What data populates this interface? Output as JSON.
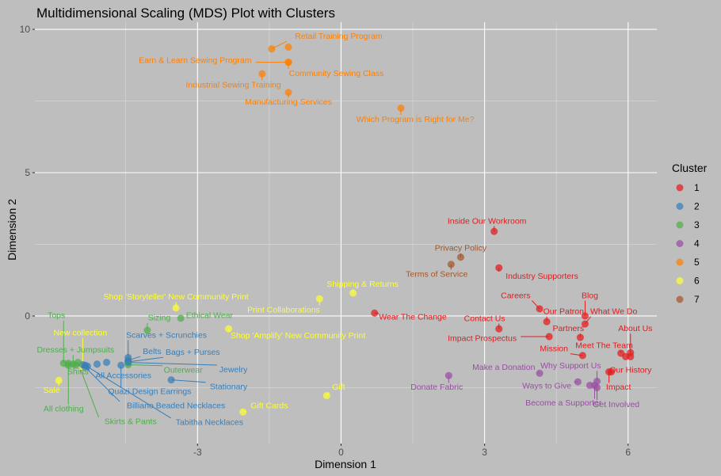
{
  "chart_data": {
    "type": "scatter",
    "title": "Multidimensional Scaling (MDS) Plot with Clusters",
    "xlabel": "Dimension 1",
    "ylabel": "Dimension 2",
    "xlim": [
      -6.4,
      6.6
    ],
    "ylim": [
      -4.45,
      10.25
    ],
    "x_ticks": [
      -3,
      0,
      3,
      6
    ],
    "y_ticks": [
      0,
      5,
      10
    ],
    "grid": true,
    "legend": {
      "title": "Cluster",
      "position": "right"
    },
    "clusters": [
      {
        "name": "1",
        "color": "#E41A1C"
      },
      {
        "name": "2",
        "color": "#377EB8"
      },
      {
        "name": "3",
        "color": "#4DAF4A"
      },
      {
        "name": "4",
        "color": "#984EA3"
      },
      {
        "name": "5",
        "color": "#FF7F00"
      },
      {
        "name": "6",
        "color": "#FFFF33"
      },
      {
        "name": "7",
        "color": "#A65628"
      }
    ],
    "points": [
      {
        "label": "Retail Training Program",
        "x": -1.45,
        "y": 9.32,
        "cluster": "5",
        "lx": -0.05,
        "ly": 9.75
      },
      {
        "label": "",
        "x": -1.1,
        "y": 9.38,
        "cluster": "5"
      },
      {
        "label": "Earn & Learn Sewing Program",
        "x": -1.1,
        "y": 8.85,
        "cluster": "5",
        "lx": -3.05,
        "ly": 8.9
      },
      {
        "label": "Community Sewing Class",
        "x": -1.1,
        "y": 8.85,
        "cluster": "5",
        "lx": -0.1,
        "ly": 8.45
      },
      {
        "label": "Industrial Sewing Training",
        "x": -1.65,
        "y": 8.45,
        "cluster": "5",
        "lx": -2.25,
        "ly": 8.05
      },
      {
        "label": "Manufacturing Services",
        "x": -1.1,
        "y": 7.8,
        "cluster": "5",
        "lx": -1.1,
        "ly": 7.45
      },
      {
        "label": "Which Program is Right for Me?",
        "x": 1.25,
        "y": 7.25,
        "cluster": "5",
        "lx": 1.55,
        "ly": 6.85
      },
      {
        "label": "Inside Our Workroom",
        "x": 3.2,
        "y": 2.95,
        "cluster": "1",
        "lx": 3.05,
        "ly": 3.3
      },
      {
        "label": "Privacy Policy",
        "x": 2.5,
        "y": 2.05,
        "cluster": "7",
        "lx": 2.5,
        "ly": 2.35
      },
      {
        "label": "Terms of Service",
        "x": 2.3,
        "y": 1.8,
        "cluster": "7",
        "lx": 2.0,
        "ly": 1.45
      },
      {
        "label": "Industry Supporters",
        "x": 3.3,
        "y": 1.68,
        "cluster": "1",
        "lx": 4.2,
        "ly": 1.38
      },
      {
        "label": "Shipping & Returns",
        "x": 0.25,
        "y": 0.8,
        "cluster": "6",
        "lx": 0.45,
        "ly": 1.1
      },
      {
        "label": "Print Collaborations",
        "x": -0.45,
        "y": 0.6,
        "cluster": "6",
        "lx": -1.2,
        "ly": 0.2
      },
      {
        "label": "Careers",
        "x": 4.15,
        "y": 0.25,
        "cluster": "1",
        "lx": 3.65,
        "ly": 0.7
      },
      {
        "label": "Blog",
        "x": 5.1,
        "y": 0.0,
        "cluster": "1",
        "lx": 5.2,
        "ly": 0.7
      },
      {
        "label": "Our Patron",
        "x": 4.3,
        "y": -0.2,
        "cluster": "1",
        "lx": 4.65,
        "ly": 0.15
      },
      {
        "label": "What We Do",
        "x": 5.1,
        "y": -0.28,
        "cluster": "1",
        "lx": 5.7,
        "ly": 0.15
      },
      {
        "label": "Wear The Change",
        "x": 0.7,
        "y": 0.1,
        "cluster": "1",
        "lx": 1.5,
        "ly": -0.05
      },
      {
        "label": "Contact Us",
        "x": 3.3,
        "y": -0.45,
        "cluster": "1",
        "lx": 3.0,
        "ly": -0.1
      },
      {
        "label": "About Us",
        "x": 6.05,
        "y": -1.28,
        "cluster": "1",
        "lx": 6.15,
        "ly": -0.45
      },
      {
        "label": "Partners",
        "x": 5.0,
        "y": -0.75,
        "cluster": "1",
        "lx": 4.75,
        "ly": -0.45
      },
      {
        "label": "Impact Prospectus",
        "x": 4.35,
        "y": -0.72,
        "cluster": "1",
        "lx": 2.95,
        "ly": -0.8
      },
      {
        "label": "Meet The Team",
        "x": 5.85,
        "y": -1.3,
        "cluster": "1",
        "lx": 5.5,
        "ly": -1.05
      },
      {
        "label": "Mission",
        "x": 5.05,
        "y": -1.38,
        "cluster": "1",
        "lx": 4.45,
        "ly": -1.15
      },
      {
        "label": "",
        "x": 5.95,
        "y": -1.42,
        "cluster": "1"
      },
      {
        "label": "",
        "x": 6.05,
        "y": -1.42,
        "cluster": "1"
      },
      {
        "label": "Our History",
        "x": 5.65,
        "y": -1.95,
        "cluster": "1",
        "lx": 6.05,
        "ly": -1.9
      },
      {
        "label": "Impact",
        "x": 5.6,
        "y": -1.95,
        "cluster": "1",
        "lx": 5.8,
        "ly": -2.5
      },
      {
        "label": "Make a Donation",
        "x": 4.15,
        "y": -2.0,
        "cluster": "4",
        "lx": 3.4,
        "ly": -1.8
      },
      {
        "label": "Why Support Us",
        "x": 5.35,
        "y": -2.28,
        "cluster": "4",
        "lx": 4.8,
        "ly": -1.75
      },
      {
        "label": "Donate Fabric",
        "x": 2.25,
        "y": -2.08,
        "cluster": "4",
        "lx": 2.0,
        "ly": -2.5
      },
      {
        "label": "Ways to Give",
        "x": 4.95,
        "y": -2.3,
        "cluster": "4",
        "lx": 4.3,
        "ly": -2.45
      },
      {
        "label": "",
        "x": 5.2,
        "y": -2.42,
        "cluster": "4"
      },
      {
        "label": "Get Involved",
        "x": 5.35,
        "y": -2.5,
        "cluster": "4",
        "lx": 5.75,
        "ly": -3.1
      },
      {
        "label": "Become a Supporter",
        "x": 5.3,
        "y": -2.42,
        "cluster": "4",
        "lx": 4.65,
        "ly": -3.05
      },
      {
        "label": "Shop 'Storyteller' New Community Print",
        "x": -3.45,
        "y": 0.28,
        "cluster": "6",
        "lx": -3.45,
        "ly": 0.65
      },
      {
        "label": "Shop 'Amplify' New Community Print",
        "x": -2.35,
        "y": -0.45,
        "cluster": "6",
        "lx": -0.9,
        "ly": -0.7
      },
      {
        "label": "Gift",
        "x": -0.3,
        "y": -2.78,
        "cluster": "6",
        "lx": -0.05,
        "ly": -2.5
      },
      {
        "label": "Gift Cards",
        "x": -2.05,
        "y": -3.35,
        "cluster": "6",
        "lx": -1.5,
        "ly": -3.15
      },
      {
        "label": "Tops",
        "x": -5.8,
        "y": -1.65,
        "cluster": "3",
        "lx": -5.95,
        "ly": 0.0
      },
      {
        "label": "Sizing",
        "x": -4.05,
        "y": -0.5,
        "cluster": "3",
        "lx": -3.8,
        "ly": -0.08
      },
      {
        "label": "Ethical Wear",
        "x": -3.35,
        "y": -0.08,
        "cluster": "3",
        "lx": -2.75,
        "ly": 0.0
      },
      {
        "label": "New collection",
        "x": -5.4,
        "y": -1.78,
        "cluster": "6",
        "lx": -5.45,
        "ly": -0.6
      },
      {
        "label": "Scarves + Scrunchies",
        "x": -4.45,
        "y": -1.45,
        "cluster": "2",
        "lx": -3.65,
        "ly": -0.68
      },
      {
        "label": "Belts",
        "x": -4.45,
        "y": -1.55,
        "cluster": "2",
        "lx": -3.95,
        "ly": -1.25
      },
      {
        "label": "Bags + Purses",
        "x": -4.45,
        "y": -1.6,
        "cluster": "2",
        "lx": -3.1,
        "ly": -1.28
      },
      {
        "label": "Dresses + Jumpsuits",
        "x": -5.6,
        "y": -1.68,
        "cluster": "3",
        "lx": -5.55,
        "ly": -1.2
      },
      {
        "label": "Outerwear",
        "x": -4.45,
        "y": -1.7,
        "cluster": "3",
        "lx": -3.3,
        "ly": -1.9
      },
      {
        "label": "Jewelry",
        "x": -4.45,
        "y": -1.62,
        "cluster": "2",
        "lx": -2.25,
        "ly": -1.88
      },
      {
        "label": "Shirts",
        "x": -5.55,
        "y": -1.72,
        "cluster": "3",
        "lx": -5.5,
        "ly": -1.95
      },
      {
        "label": "",
        "x": -5.4,
        "y": -1.7,
        "cluster": "2"
      },
      {
        "label": "",
        "x": -5.7,
        "y": -1.72,
        "cluster": "3"
      },
      {
        "label": "",
        "x": -4.9,
        "y": -1.62,
        "cluster": "2"
      },
      {
        "label": "",
        "x": -5.1,
        "y": -1.68,
        "cluster": "2"
      },
      {
        "label": "All Accessories",
        "x": -5.3,
        "y": -1.75,
        "cluster": "2",
        "lx": -4.55,
        "ly": -2.1
      },
      {
        "label": "Stationary",
        "x": -3.55,
        "y": -2.23,
        "cluster": "2",
        "lx": -2.35,
        "ly": -2.48
      },
      {
        "label": "Quazi Design Earrings",
        "x": -4.6,
        "y": -1.72,
        "cluster": "2",
        "lx": -4.0,
        "ly": -2.65
      },
      {
        "label": "Sale",
        "x": -5.9,
        "y": -2.25,
        "cluster": "6",
        "lx": -6.05,
        "ly": -2.6
      },
      {
        "label": "Billiano Beaded Necklaces",
        "x": -5.35,
        "y": -1.78,
        "cluster": "2",
        "lx": -3.45,
        "ly": -3.15
      },
      {
        "label": "All clothing",
        "x": -5.7,
        "y": -1.65,
        "cluster": "3",
        "lx": -5.8,
        "ly": -3.25
      },
      {
        "label": "Skirts & Pants",
        "x": -5.5,
        "y": -1.62,
        "cluster": "3",
        "lx": -4.4,
        "ly": -3.7
      },
      {
        "label": "Tabitha Necklaces",
        "x": -5.35,
        "y": -1.72,
        "cluster": "2",
        "lx": -2.75,
        "ly": -3.73
      }
    ]
  }
}
